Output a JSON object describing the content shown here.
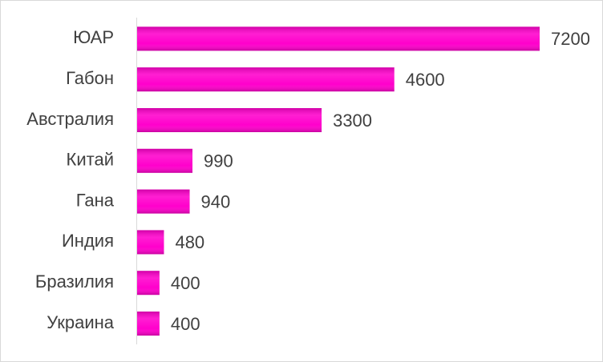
{
  "chart_data": {
    "type": "bar",
    "orientation": "horizontal",
    "categories": [
      "ЮАР",
      "Габон",
      "Австралия",
      "Китай",
      "Гана",
      "Индия",
      "Бразилия",
      "Украина"
    ],
    "values": [
      7200,
      4600,
      3300,
      990,
      940,
      480,
      400,
      400
    ],
    "color": "#ff00cc"
  }
}
